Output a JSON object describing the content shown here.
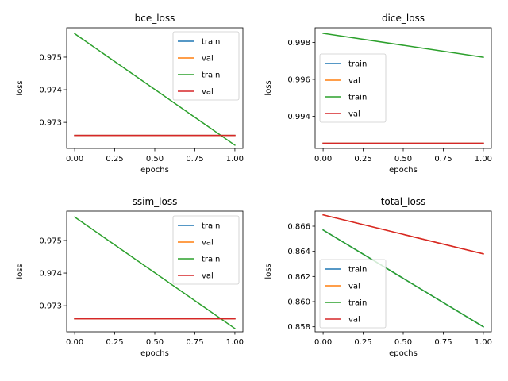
{
  "chart_data": [
    {
      "type": "line",
      "title": "bce_loss",
      "xlabel": "epochs",
      "ylabel": "loss",
      "x": [
        0,
        1
      ],
      "xlim": [
        -0.05,
        1.05
      ],
      "ylim": [
        0.9722,
        0.9759
      ],
      "xticks": [
        "0.00",
        "0.25",
        "0.50",
        "0.75",
        "1.00"
      ],
      "yticks": [
        "0.973",
        "0.974",
        "0.975"
      ],
      "ytick_values": [
        0.973,
        0.974,
        0.975
      ],
      "legend_loc": "upper right",
      "series": [
        {
          "name": "train",
          "color": "#1f77b4",
          "values": [
            0.9726,
            0.9726
          ]
        },
        {
          "name": "val",
          "color": "#ff7f0e",
          "values": [
            0.9726,
            0.9726
          ]
        },
        {
          "name": "train",
          "color": "#2ca02c",
          "values": [
            0.97572,
            0.9723
          ]
        },
        {
          "name": "val",
          "color": "#d62728",
          "values": [
            0.9726,
            0.9726
          ]
        }
      ]
    },
    {
      "type": "line",
      "title": "dice_loss",
      "xlabel": "epochs",
      "ylabel": "loss",
      "x": [
        0,
        1
      ],
      "xlim": [
        -0.05,
        1.05
      ],
      "ylim": [
        0.99225,
        0.9988
      ],
      "xticks": [
        "0.00",
        "0.25",
        "0.50",
        "0.75",
        "1.00"
      ],
      "yticks": [
        "0.994",
        "0.996",
        "0.998"
      ],
      "ytick_values": [
        0.994,
        0.996,
        0.998
      ],
      "legend_loc": "center left",
      "series": [
        {
          "name": "train",
          "color": "#1f77b4",
          "values": [
            0.99253,
            0.99253
          ]
        },
        {
          "name": "val",
          "color": "#ff7f0e",
          "values": [
            0.99253,
            0.99253
          ]
        },
        {
          "name": "train",
          "color": "#2ca02c",
          "values": [
            0.9985,
            0.9972
          ]
        },
        {
          "name": "val",
          "color": "#d62728",
          "values": [
            0.99253,
            0.99253
          ]
        }
      ]
    },
    {
      "type": "line",
      "title": "ssim_loss",
      "xlabel": "epochs",
      "ylabel": "loss",
      "x": [
        0,
        1
      ],
      "xlim": [
        -0.05,
        1.05
      ],
      "ylim": [
        0.9722,
        0.9759
      ],
      "xticks": [
        "0.00",
        "0.25",
        "0.50",
        "0.75",
        "1.00"
      ],
      "yticks": [
        "0.973",
        "0.974",
        "0.975"
      ],
      "ytick_values": [
        0.973,
        0.974,
        0.975
      ],
      "legend_loc": "upper right",
      "series": [
        {
          "name": "train",
          "color": "#1f77b4",
          "values": [
            0.9726,
            0.9726
          ]
        },
        {
          "name": "val",
          "color": "#ff7f0e",
          "values": [
            0.9726,
            0.9726
          ]
        },
        {
          "name": "train",
          "color": "#2ca02c",
          "values": [
            0.97572,
            0.9723
          ]
        },
        {
          "name": "val",
          "color": "#d62728",
          "values": [
            0.9726,
            0.9726
          ]
        }
      ]
    },
    {
      "type": "line",
      "title": "total_loss",
      "xlabel": "epochs",
      "ylabel": "loss",
      "x": [
        0,
        1
      ],
      "xlim": [
        -0.05,
        1.05
      ],
      "ylim": [
        0.8576,
        0.8672
      ],
      "xticks": [
        "0.00",
        "0.25",
        "0.50",
        "0.75",
        "1.00"
      ],
      "yticks": [
        "0.858",
        "0.860",
        "0.862",
        "0.864",
        "0.866"
      ],
      "ytick_values": [
        0.858,
        0.86,
        0.862,
        0.864,
        0.866
      ],
      "legend_loc": "lower left",
      "series": [
        {
          "name": "train",
          "color": "#1f77b4",
          "values": [
            0.8657,
            0.858
          ]
        },
        {
          "name": "val",
          "color": "#ff7f0e",
          "values": [
            0.8669,
            0.8638
          ]
        },
        {
          "name": "train",
          "color": "#2ca02c",
          "values": [
            0.8657,
            0.858
          ]
        },
        {
          "name": "val",
          "color": "#d62728",
          "values": [
            0.8669,
            0.8638
          ]
        }
      ]
    }
  ]
}
